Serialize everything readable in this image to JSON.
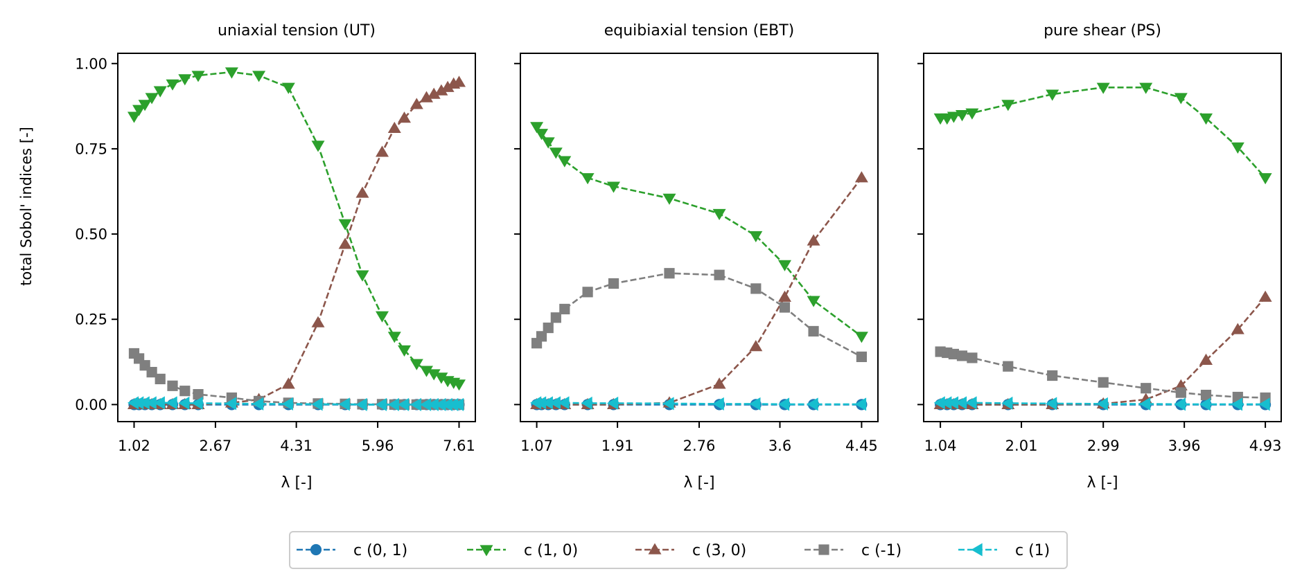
{
  "figure": {
    "ylabel": "total Sobol' indices [-]",
    "series_styles": [
      {
        "key": "c01",
        "name": "c (0, 1)",
        "color": "#1f77b4",
        "marker": "circle"
      },
      {
        "key": "c10",
        "name": "c (1, 0)",
        "color": "#2ca02c",
        "marker": "triangle-down"
      },
      {
        "key": "c30",
        "name": "c (3, 0)",
        "color": "#8c564b",
        "marker": "triangle-up"
      },
      {
        "key": "cm1",
        "name": "c (-1)",
        "color": "#7f7f7f",
        "marker": "square"
      },
      {
        "key": "c1",
        "name": "c (1)",
        "color": "#17becf",
        "marker": "triangle-left"
      }
    ]
  },
  "chart_data": [
    {
      "type": "line",
      "title": "uniaxial tension (UT)",
      "xlabel": "λ [-]",
      "ylabel": "total Sobol' indices [-]",
      "xlim": [
        0.69,
        7.94
      ],
      "ylim": [
        -0.05,
        1.03
      ],
      "xticks": [
        1.02,
        2.67,
        4.31,
        5.96,
        7.61
      ],
      "xtick_labels": [
        "1.02",
        "2.67",
        "4.31",
        "5.96",
        "7.61"
      ],
      "yticks": [
        0.0,
        0.25,
        0.5,
        0.75,
        1.0
      ],
      "ytick_labels": [
        "0.00",
        "0.25",
        "0.50",
        "0.75",
        "1.00"
      ],
      "x": [
        1.02,
        1.12,
        1.24,
        1.38,
        1.55,
        1.8,
        2.05,
        2.32,
        3.0,
        3.55,
        4.15,
        4.75,
        5.3,
        5.65,
        6.05,
        6.3,
        6.5,
        6.75,
        6.95,
        7.1,
        7.25,
        7.38,
        7.5,
        7.61
      ],
      "series": [
        {
          "name": "c (0, 1)",
          "values": [
            0,
            0,
            0,
            0,
            0,
            0,
            0,
            0,
            0,
            0,
            0,
            0,
            0,
            0,
            0,
            0,
            0,
            0,
            0,
            0,
            0,
            0,
            0,
            0
          ]
        },
        {
          "name": "c (1, 0)",
          "values": [
            0.845,
            0.865,
            0.88,
            0.9,
            0.92,
            0.94,
            0.955,
            0.965,
            0.975,
            0.965,
            0.93,
            0.76,
            0.53,
            0.38,
            0.26,
            0.2,
            0.16,
            0.12,
            0.1,
            0.09,
            0.08,
            0.07,
            0.065,
            0.06
          ]
        },
        {
          "name": "c (3, 0)",
          "values": [
            0,
            0,
            0,
            0,
            0,
            0,
            0,
            0,
            0.005,
            0.015,
            0.06,
            0.24,
            0.47,
            0.62,
            0.74,
            0.81,
            0.84,
            0.88,
            0.9,
            0.91,
            0.92,
            0.93,
            0.94,
            0.945
          ]
        },
        {
          "name": "c (-1)",
          "values": [
            0.15,
            0.135,
            0.115,
            0.095,
            0.075,
            0.055,
            0.04,
            0.03,
            0.02,
            0.01,
            0.005,
            0.003,
            0.002,
            0.001,
            0.001,
            0,
            0,
            0,
            0,
            0,
            0,
            0,
            0,
            0
          ]
        },
        {
          "name": "c (1)",
          "values": [
            0.005,
            0.005,
            0.005,
            0.005,
            0.005,
            0.005,
            0.004,
            0.004,
            0.003,
            0.002,
            0.002,
            0.001,
            0.001,
            0,
            0,
            0,
            0,
            0,
            0,
            0,
            0,
            0,
            0,
            0
          ]
        }
      ]
    },
    {
      "type": "line",
      "title": "equibiaxial tension (EBT)",
      "xlabel": "λ [-]",
      "ylabel": "",
      "xlim": [
        0.9,
        4.62
      ],
      "ylim": [
        -0.05,
        1.03
      ],
      "xticks": [
        1.07,
        1.91,
        2.76,
        3.6,
        4.45
      ],
      "xtick_labels": [
        "1.07",
        "1.91",
        "2.76",
        "3.6",
        "4.45"
      ],
      "yticks": [
        0.0,
        0.25,
        0.5,
        0.75,
        1.0
      ],
      "ytick_labels": [
        "",
        "",
        "",
        "",
        ""
      ],
      "x": [
        1.07,
        1.12,
        1.19,
        1.27,
        1.36,
        1.6,
        1.87,
        2.45,
        2.97,
        3.35,
        3.65,
        3.95,
        4.45
      ],
      "series": [
        {
          "name": "c (0, 1)",
          "values": [
            0,
            0,
            0,
            0,
            0,
            0,
            0,
            0,
            0,
            0,
            0,
            0,
            0
          ]
        },
        {
          "name": "c (1, 0)",
          "values": [
            0.815,
            0.795,
            0.77,
            0.74,
            0.715,
            0.665,
            0.64,
            0.605,
            0.56,
            0.495,
            0.41,
            0.305,
            0.2
          ]
        },
        {
          "name": "c (3, 0)",
          "values": [
            0,
            0,
            0,
            0,
            0,
            0,
            0,
            0.005,
            0.06,
            0.17,
            0.315,
            0.48,
            0.665
          ]
        },
        {
          "name": "c (-1)",
          "values": [
            0.18,
            0.2,
            0.225,
            0.255,
            0.28,
            0.33,
            0.355,
            0.385,
            0.38,
            0.34,
            0.285,
            0.215,
            0.14
          ]
        },
        {
          "name": "c (1)",
          "values": [
            0.005,
            0.005,
            0.005,
            0.005,
            0.005,
            0.004,
            0.004,
            0.003,
            0.002,
            0.002,
            0.001,
            0.001,
            0.001
          ]
        }
      ]
    },
    {
      "type": "line",
      "title": "pure shear (PS)",
      "xlabel": "λ [-]",
      "ylabel": "",
      "xlim": [
        0.84,
        5.12
      ],
      "ylim": [
        -0.05,
        1.03
      ],
      "xticks": [
        1.04,
        2.01,
        2.99,
        3.96,
        4.93
      ],
      "xtick_labels": [
        "1.04",
        "2.01",
        "2.99",
        "3.96",
        "4.93"
      ],
      "yticks": [
        0.0,
        0.25,
        0.5,
        0.75,
        1.0
      ],
      "ytick_labels": [
        "",
        "",
        "",
        "",
        ""
      ],
      "x": [
        1.04,
        1.12,
        1.2,
        1.3,
        1.42,
        1.85,
        2.38,
        2.99,
        3.5,
        3.92,
        4.22,
        4.6,
        4.93
      ],
      "series": [
        {
          "name": "c (0, 1)",
          "values": [
            0,
            0,
            0,
            0,
            0,
            0,
            0,
            0,
            0,
            0,
            0,
            0,
            0
          ]
        },
        {
          "name": "c (1, 0)",
          "values": [
            0.84,
            0.84,
            0.845,
            0.85,
            0.855,
            0.88,
            0.91,
            0.93,
            0.93,
            0.9,
            0.84,
            0.755,
            0.665
          ]
        },
        {
          "name": "c (3, 0)",
          "values": [
            0,
            0,
            0,
            0,
            0,
            0,
            0,
            0.002,
            0.015,
            0.055,
            0.13,
            0.22,
            0.315
          ]
        },
        {
          "name": "c (-1)",
          "values": [
            0.155,
            0.152,
            0.148,
            0.143,
            0.137,
            0.112,
            0.085,
            0.065,
            0.048,
            0.035,
            0.028,
            0.022,
            0.02
          ]
        },
        {
          "name": "c (1)",
          "values": [
            0.005,
            0.005,
            0.005,
            0.005,
            0.005,
            0.004,
            0.003,
            0.002,
            0.002,
            0.001,
            0.001,
            0.001,
            0.001
          ]
        }
      ]
    }
  ]
}
